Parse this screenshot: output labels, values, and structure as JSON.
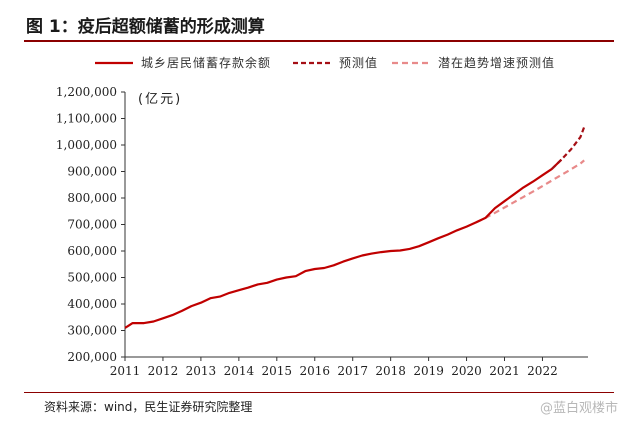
{
  "header": {
    "title": "图 1：疫后超额储蓄的形成测算"
  },
  "footer": {
    "source": "资料来源：wind，民生证券研究院整理",
    "watermark": "@蓝白观楼市"
  },
  "chart_data": {
    "type": "line",
    "ylabel": "(亿元)",
    "ylim": [
      200000,
      1200000
    ],
    "yticks": [
      200000,
      300000,
      400000,
      500000,
      600000,
      700000,
      800000,
      900000,
      1000000,
      1100000,
      1200000
    ],
    "ytick_labels": [
      "200,000",
      "300,000",
      "400,000",
      "500,000",
      "600,000",
      "700,000",
      "800,000",
      "900,000",
      "1,000,000",
      "1,100,000",
      "1,200,000"
    ],
    "xlim": [
      2011,
      2023.2
    ],
    "xticks": [
      2011,
      2012,
      2013,
      2014,
      2015,
      2016,
      2017,
      2018,
      2019,
      2020,
      2021,
      2022
    ],
    "xtick_labels": [
      "2011",
      "2012",
      "2013",
      "2014",
      "2015",
      "2016",
      "2017",
      "2018",
      "2019",
      "2020",
      "2021",
      "2022"
    ],
    "legend_position": "top",
    "colors": {
      "actual": "#c00000",
      "forecast": "#a50f15",
      "potential": "#e88a8a"
    },
    "series": [
      {
        "name": "城乡居民储蓄存款余额",
        "style": "solid",
        "x": [
          2011.0,
          2011.2,
          2011.5,
          2011.75,
          2012.0,
          2012.25,
          2012.5,
          2012.75,
          2013.0,
          2013.25,
          2013.5,
          2013.75,
          2014.0,
          2014.25,
          2014.5,
          2014.75,
          2015.0,
          2015.25,
          2015.5,
          2015.75,
          2016.0,
          2016.25,
          2016.5,
          2016.75,
          2017.0,
          2017.25,
          2017.5,
          2017.75,
          2018.0,
          2018.25,
          2018.5,
          2018.75,
          2019.0,
          2019.25,
          2019.5,
          2019.75,
          2020.0,
          2020.25,
          2020.5,
          2020.75,
          2021.0,
          2021.25,
          2021.5,
          2021.75,
          2022.0,
          2022.25,
          2022.5
        ],
        "y": [
          310000,
          328000,
          328000,
          334000,
          346000,
          358000,
          374000,
          392000,
          405000,
          422000,
          428000,
          442000,
          452000,
          462000,
          474000,
          480000,
          492000,
          500000,
          505000,
          524000,
          532000,
          536000,
          546000,
          560000,
          572000,
          583000,
          590000,
          596000,
          600000,
          602000,
          608000,
          618000,
          633000,
          648000,
          662000,
          678000,
          692000,
          708000,
          725000,
          762000,
          788000,
          814000,
          840000,
          862000,
          886000,
          910000,
          945000
        ]
      },
      {
        "name": "预测值",
        "style": "dashed",
        "x": [
          2022.25,
          2022.5,
          2022.75,
          2023.0,
          2023.1
        ],
        "y": [
          910000,
          945000,
          983000,
          1030000,
          1068000
        ]
      },
      {
        "name": "潜在趋势增速预测值",
        "style": "dashed",
        "x": [
          2020.25,
          2020.5,
          2020.75,
          2021.0,
          2021.25,
          2021.5,
          2021.75,
          2022.0,
          2022.25,
          2022.5,
          2022.75,
          2023.0,
          2023.1
        ],
        "y": [
          708000,
          725000,
          744000,
          764000,
          784000,
          804000,
          824000,
          845000,
          866000,
          887000,
          908000,
          930000,
          942000
        ]
      }
    ]
  }
}
